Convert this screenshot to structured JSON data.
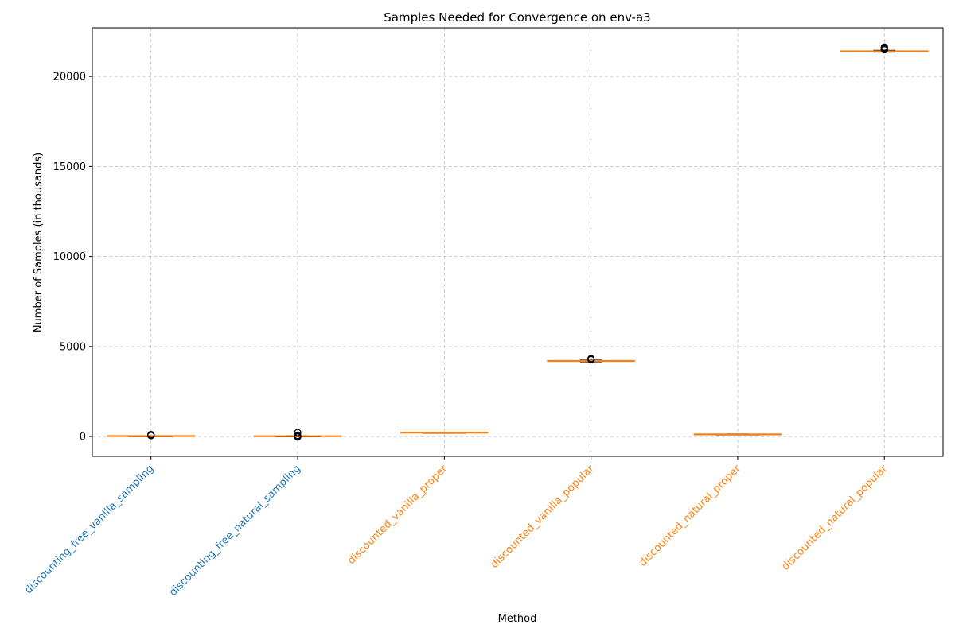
{
  "chart_data": {
    "type": "box",
    "title": "Samples Needed for Convergence on env-a3",
    "xlabel": "Method",
    "ylabel": "Number of Samples (in thousands)",
    "ylim": [
      -1100,
      22700
    ],
    "yticks": [
      0,
      5000,
      10000,
      15000,
      20000
    ],
    "grid": true,
    "categories": [
      "discounting_free_vanilla_sampling",
      "discounting_free_natural_sampling",
      "discounted_vanilla_proper",
      "discounted_vanilla_popular",
      "discounted_natural_proper",
      "discounted_natural_popular"
    ],
    "category_colors": [
      "#1f77b4",
      "#1f77b4",
      "#ff7f0e",
      "#ff7f0e",
      "#ff7f0e",
      "#ff7f0e"
    ],
    "median_color": "#ff7f0e",
    "boxes": [
      {
        "min": 10,
        "q1": 15,
        "median": 25,
        "q3": 35,
        "max": 45,
        "outliers": [
          50,
          80,
          110
        ]
      },
      {
        "min": 5,
        "q1": 10,
        "median": 18,
        "q3": 25,
        "max": 40,
        "outliers": [
          -30,
          10,
          60,
          220
        ]
      },
      {
        "min": 200,
        "q1": 210,
        "median": 220,
        "q3": 230,
        "max": 240,
        "outliers": []
      },
      {
        "min": 4150,
        "q1": 4180,
        "median": 4200,
        "q3": 4220,
        "max": 4250,
        "outliers": [
          4270,
          4300,
          4330
        ]
      },
      {
        "min": 100,
        "q1": 110,
        "median": 120,
        "q3": 130,
        "max": 140,
        "outliers": []
      },
      {
        "min": 21350,
        "q1": 21380,
        "median": 21400,
        "q3": 21420,
        "max": 21450,
        "outliers": [
          21480,
          21530,
          21580,
          21630
        ]
      }
    ]
  }
}
